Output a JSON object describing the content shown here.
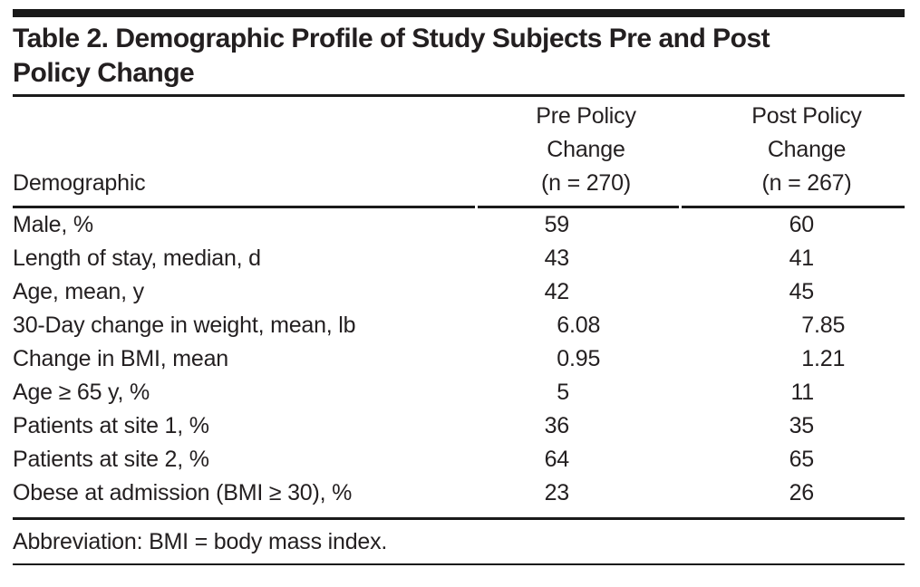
{
  "table": {
    "title": "Table 2. Demographic Profile of Study Subjects Pre and Post\nPolicy Change",
    "columns": {
      "demographic": "Demographic",
      "pre": "Pre Policy\nChange\n(n = 270)",
      "post": "Post Policy\nChange\n(n = 267)"
    },
    "rows": [
      {
        "label": "Male, %",
        "pre": "59",
        "post": "60"
      },
      {
        "label": "Length of stay, median, d",
        "pre": "43",
        "post": "41"
      },
      {
        "label": "Age, mean, y",
        "pre": "42",
        "post": "45"
      },
      {
        "label": "30-Day change in weight, mean, lb",
        "pre": "6.08",
        "post": "7.85"
      },
      {
        "label": "Change in BMI, mean",
        "pre": "0.95",
        "post": "1.21"
      },
      {
        "label": "Age ≥ 65 y, %",
        "pre": "5",
        "post": "11"
      },
      {
        "label": "Patients at site 1, %",
        "pre": "36",
        "post": "35"
      },
      {
        "label": "Patients at site 2, %",
        "pre": "64",
        "post": "65"
      },
      {
        "label": "Obese at admission (BMI ≥ 30), %",
        "pre": "23",
        "post": "26"
      }
    ],
    "footnote": "Abbreviation: BMI = body mass index.",
    "colors": {
      "text": "#231f20",
      "rule": "#1a1a1a",
      "background": "#ffffff"
    }
  },
  "chart_data": {
    "type": "table",
    "title": "Table 2. Demographic Profile of Study Subjects Pre and Post Policy Change",
    "columns": [
      "Demographic",
      "Pre Policy Change (n = 270)",
      "Post Policy Change (n = 267)"
    ],
    "rows": [
      [
        "Male, %",
        59,
        60
      ],
      [
        "Length of stay, median, d",
        43,
        41
      ],
      [
        "Age, mean, y",
        42,
        45
      ],
      [
        "30-Day change in weight, mean, lb",
        6.08,
        7.85
      ],
      [
        "Change in BMI, mean",
        0.95,
        1.21
      ],
      [
        "Age ≥ 65 y, %",
        5,
        11
      ],
      [
        "Patients at site 1, %",
        36,
        35
      ],
      [
        "Patients at site 2, %",
        64,
        65
      ],
      [
        "Obese at admission (BMI ≥ 30), %",
        23,
        26
      ]
    ],
    "footnote": "Abbreviation: BMI = body mass index."
  }
}
